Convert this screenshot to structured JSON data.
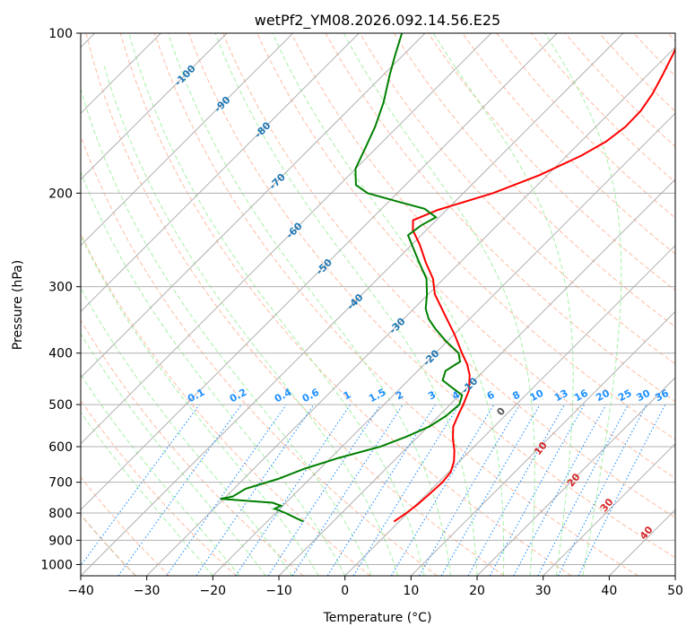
{
  "colors": {
    "temperature": "#ff0000",
    "dewpoint": "#008000",
    "isotherm": "#b0b0b0",
    "dry_adiabat": "#ffa07a",
    "moist_adiabat": "#90ee90",
    "mixing_ratio": "#1e90ff",
    "isotherm_label": "#1f77b4",
    "wetbulb_label": "#d62728",
    "zero_label": "#555555",
    "boundary": "#d2b48c"
  },
  "chart_data": {
    "type": "line",
    "title": "wetPf2_YM08.2026.092.14.56.E25",
    "xlabel": "Temperature (°C)",
    "ylabel": "Pressure (hPa)",
    "xlim": [
      -40,
      50
    ],
    "ylim": [
      1050,
      100
    ],
    "y_scale": "log",
    "skew": true,
    "grid": true,
    "x_ticks": [
      -40,
      -30,
      -20,
      -10,
      0,
      10,
      20,
      30,
      40,
      50
    ],
    "y_ticks": [
      100,
      200,
      300,
      400,
      500,
      600,
      700,
      800,
      900,
      1000
    ],
    "series": [
      {
        "role": "temperature",
        "points": [
          [
            830,
            -0.8
          ],
          [
            815,
            -0.5
          ],
          [
            800,
            -0.2
          ],
          [
            770,
            0.2
          ],
          [
            740,
            0.4
          ],
          [
            700,
            0.6
          ],
          [
            670,
            0.3
          ],
          [
            640,
            -0.8
          ],
          [
            610,
            -2.4
          ],
          [
            580,
            -4.4
          ],
          [
            550,
            -6.2
          ],
          [
            520,
            -7.3
          ],
          [
            500,
            -8.0
          ],
          [
            470,
            -9.3
          ],
          [
            440,
            -11.5
          ],
          [
            420,
            -13.5
          ],
          [
            400,
            -16.0
          ],
          [
            370,
            -19.8
          ],
          [
            340,
            -24.2
          ],
          [
            310,
            -29.0
          ],
          [
            290,
            -31.6
          ],
          [
            270,
            -35.2
          ],
          [
            250,
            -38.8
          ],
          [
            235,
            -42.0
          ],
          [
            225,
            -43.5
          ],
          [
            215,
            -41.3
          ],
          [
            200,
            -35.5
          ],
          [
            185,
            -31.2
          ],
          [
            170,
            -27.8
          ],
          [
            160,
            -26.2
          ],
          [
            150,
            -25.5
          ],
          [
            140,
            -25.6
          ],
          [
            130,
            -26.4
          ],
          [
            120,
            -27.7
          ],
          [
            110,
            -29.2
          ],
          [
            100,
            -31.0
          ]
        ]
      },
      {
        "role": "dewpoint",
        "points": [
          [
            830,
            -14.5
          ],
          [
            815,
            -16.5
          ],
          [
            800,
            -18.5
          ],
          [
            785,
            -20.8
          ],
          [
            775,
            -20.3
          ],
          [
            765,
            -22.0
          ],
          [
            760,
            -25.5
          ],
          [
            752,
            -30.5
          ],
          [
            745,
            -29.0
          ],
          [
            720,
            -28.2
          ],
          [
            690,
            -24.8
          ],
          [
            660,
            -22.3
          ],
          [
            630,
            -18.8
          ],
          [
            600,
            -14.2
          ],
          [
            575,
            -11.8
          ],
          [
            550,
            -9.8
          ],
          [
            525,
            -8.9
          ],
          [
            500,
            -8.6
          ],
          [
            480,
            -9.6
          ],
          [
            465,
            -12.2
          ],
          [
            450,
            -14.8
          ],
          [
            432,
            -15.8
          ],
          [
            415,
            -15.0
          ],
          [
            400,
            -16.5
          ],
          [
            380,
            -20.2
          ],
          [
            360,
            -23.7
          ],
          [
            345,
            -26.2
          ],
          [
            330,
            -28.2
          ],
          [
            310,
            -30.2
          ],
          [
            290,
            -32.6
          ],
          [
            270,
            -36.2
          ],
          [
            252,
            -39.6
          ],
          [
            240,
            -42.0
          ],
          [
            230,
            -41.5
          ],
          [
            222,
            -40.5
          ],
          [
            214,
            -43.5
          ],
          [
            207,
            -49.0
          ],
          [
            200,
            -54.5
          ],
          [
            193,
            -57.5
          ],
          [
            180,
            -60.0
          ],
          [
            165,
            -61.6
          ],
          [
            150,
            -63.4
          ],
          [
            135,
            -65.8
          ],
          [
            120,
            -69.0
          ],
          [
            110,
            -71.2
          ],
          [
            100,
            -73.5
          ]
        ]
      }
    ],
    "annotations": {
      "isotherm_labels": [
        "-100",
        "-90",
        "-80",
        "-70",
        "-60",
        "-50",
        "-40",
        "-30",
        "-20",
        "-10"
      ],
      "mixing_ratio_labels": [
        "0.1",
        "0.2",
        "0.4",
        "0.6",
        "1",
        "1.5",
        "2",
        "3",
        "4",
        "6",
        "8",
        "10",
        "13",
        "16",
        "20",
        "25",
        "30",
        "36"
      ],
      "wetbulb_labels": [
        "0",
        "10",
        "20",
        "30",
        "40"
      ]
    }
  }
}
